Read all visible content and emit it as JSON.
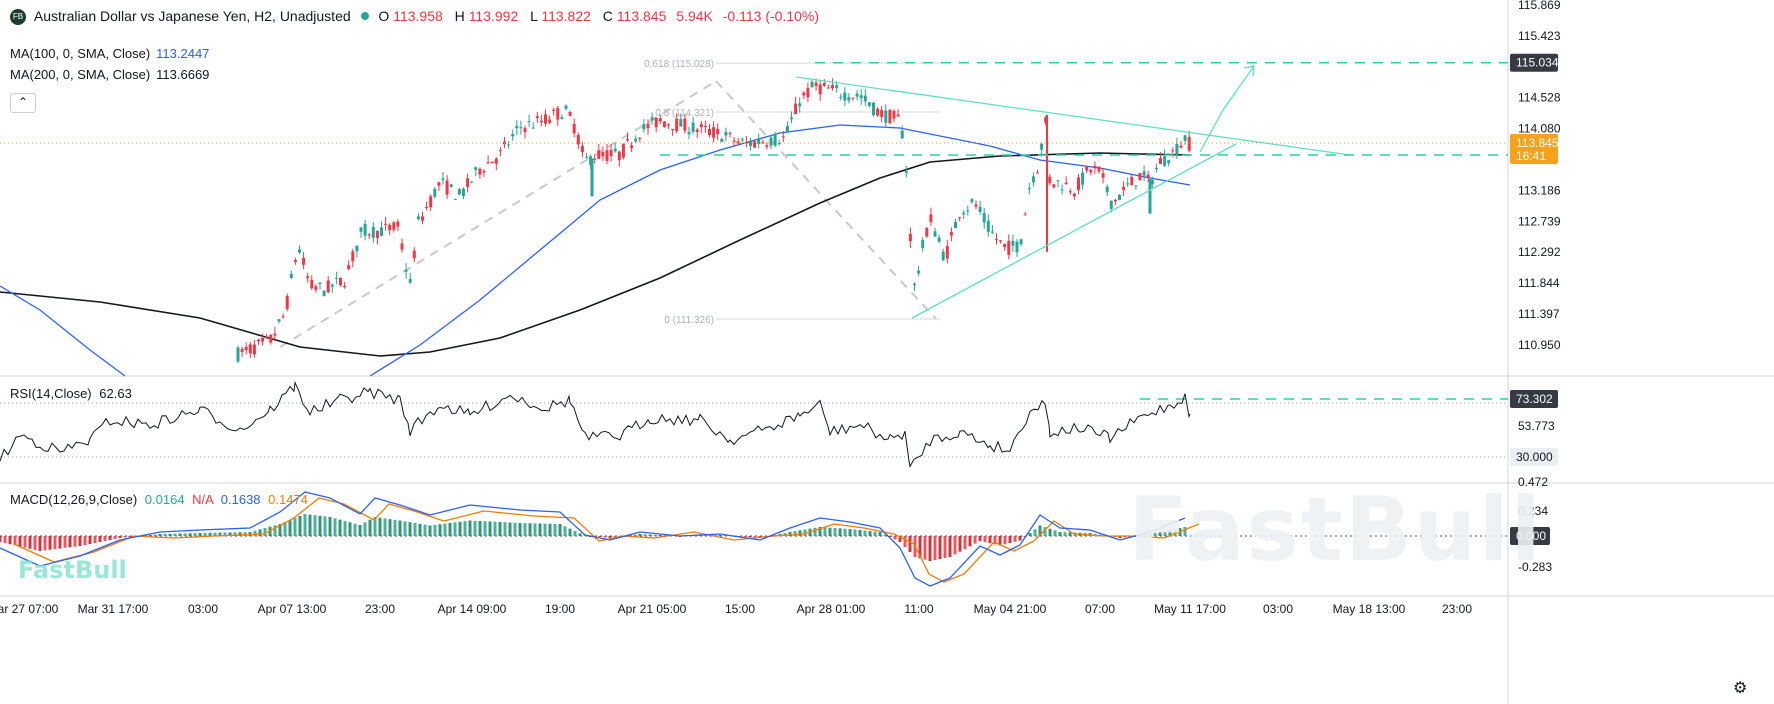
{
  "header": {
    "symbol_icon": "FB",
    "title": "Australian Dollar vs Japanese Yen, H2, Unadjusted",
    "status_dot_color": "#26a69a",
    "o_label": "O",
    "o_value": "113.958",
    "h_label": "H",
    "h_value": "113.992",
    "l_label": "L",
    "l_value": "113.822",
    "c_label": "C",
    "c_value": "113.845",
    "volume": "5.94K",
    "change": "-0.113 (-0.10%)",
    "down_color": "#f23645"
  },
  "ma100": {
    "label": "MA(100, 0, SMA, Close)",
    "value": "113.2447",
    "color": "#2962ff"
  },
  "ma200": {
    "label": "MA(200, 0, SMA, Close)",
    "value": "113.6669",
    "color": "#131722"
  },
  "collapse_icon": "chevron-up-icon",
  "rsi": {
    "label": "RSI(14,Close)",
    "value": "62.63",
    "levels": [
      "73.302",
      "53.773",
      "30.000"
    ]
  },
  "macd": {
    "label": "MACD(12,26,9,Close)",
    "macd": "0.0164",
    "signal": "N/A",
    "hist": "0.1638",
    "extra": "0.1474",
    "macd_color": "#2962ff",
    "signal_color": "#f57c00"
  },
  "watermark": "FastBull",
  "settings_icon": "gear-icon",
  "fib_labels": [
    "0.618 (115.028)",
    "0.5 (114.321)",
    "0 (111.326)"
  ],
  "colors": {
    "up": "#26a69a",
    "down": "#f23645",
    "accent": "#2ad3a6",
    "trend": "#5ce0c8"
  },
  "chart_data": {
    "type": "candlestick",
    "price_axis_ticks": [
      115.869,
      115.423,
      115.034,
      114.528,
      114.08,
      113.845,
      113.186,
      112.739,
      112.292,
      111.844,
      111.397,
      110.95
    ],
    "price_axis_labels": [
      "115.869",
      "115.423",
      "114.528",
      "114.080",
      "113.186",
      "112.739",
      "112.292",
      "111.844",
      "111.397",
      "110.950"
    ],
    "last_price": "113.845",
    "last_price_time": "16:41",
    "target_price": "115.034",
    "x_axis_labels": [
      "ar 27 07:00",
      "Mar 31 17:00",
      "03:00",
      "Apr 07 13:00",
      "23:00",
      "Apr 14 09:00",
      "19:00",
      "Apr 21 05:00",
      "15:00",
      "Apr 28 01:00",
      "11:00",
      "May 04 21:00",
      "07:00",
      "May 11 17:00",
      "03:00",
      "May 18 13:00",
      "23:00"
    ],
    "macd_axis_labels": [
      "0.472",
      "0.234",
      "0.000",
      "-0.283"
    ],
    "ylim": [
      110.7,
      116.0
    ],
    "fib_levels": [
      115.028,
      114.321,
      111.326
    ],
    "support_level": 113.845,
    "ma_values": {
      "ma100": 113.2447,
      "ma200": 113.6669
    }
  }
}
